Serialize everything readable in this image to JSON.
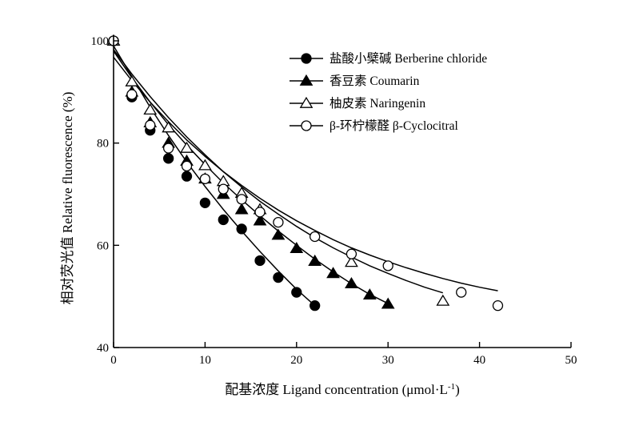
{
  "chart_data": {
    "type": "scatter",
    "xlabel": "配基浓度 Ligand concentration (μmol·L",
    "xlabel_sup": "-1",
    "xlabel_close": ")",
    "ylabel": "相对荧光值 Relative fluorescence (%)",
    "xlim": [
      0,
      50
    ],
    "ylim": [
      40,
      100
    ],
    "xticks": [
      0,
      10,
      20,
      30,
      40,
      50
    ],
    "yticks": [
      40,
      60,
      80,
      100
    ],
    "grid": false,
    "legend_position": "top-right",
    "series": [
      {
        "name": "盐酸小檗碱 Berberine chloride",
        "marker": "filled-circle",
        "x": [
          0,
          2,
          4,
          6,
          8,
          10,
          12,
          14,
          16,
          18,
          20,
          22
        ],
        "y": [
          100,
          89,
          82.5,
          77,
          73.5,
          68.3,
          65,
          63.2,
          57,
          53.7,
          50.8,
          48.2
        ],
        "fit": [
          [
            0,
            99
          ],
          [
            2,
            93
          ],
          [
            4,
            87
          ],
          [
            6,
            81.5
          ],
          [
            8,
            76.3
          ],
          [
            10,
            71.5
          ],
          [
            12,
            67
          ],
          [
            14,
            62.8
          ],
          [
            16,
            58.8
          ],
          [
            18,
            55
          ],
          [
            20,
            51.4
          ],
          [
            22,
            48.2
          ]
        ]
      },
      {
        "name": "香豆素 Coumarin",
        "marker": "filled-triangle",
        "x": [
          0,
          2,
          4,
          6,
          8,
          10,
          12,
          14,
          16,
          18,
          20,
          22,
          24,
          26,
          28,
          30
        ],
        "y": [
          100,
          90,
          84,
          80,
          76.5,
          73,
          70,
          67,
          64.8,
          62,
          59.4,
          56.9,
          54.5,
          52.5,
          50.3,
          48.5
        ],
        "fit": [
          [
            0,
            98
          ],
          [
            2,
            92.8
          ],
          [
            4,
            88
          ],
          [
            6,
            83.6
          ],
          [
            8,
            79.6
          ],
          [
            10,
            75.8
          ],
          [
            12,
            72.2
          ],
          [
            14,
            68.9
          ],
          [
            16,
            65.8
          ],
          [
            18,
            62.8
          ],
          [
            20,
            60
          ],
          [
            22,
            57.3
          ],
          [
            24,
            54.8
          ],
          [
            26,
            52.5
          ],
          [
            28,
            50.4
          ],
          [
            30,
            48.6
          ]
        ]
      },
      {
        "name": "柚皮素 Naringenin",
        "marker": "open-triangle",
        "x": [
          0,
          2,
          4,
          6,
          8,
          10,
          12,
          14,
          16,
          26,
          36
        ],
        "y": [
          100,
          92,
          86.5,
          83,
          79,
          75.6,
          72.5,
          70.2,
          67,
          56.7,
          49.1
        ],
        "fit": [
          [
            0,
            98.3
          ],
          [
            2,
            93.5
          ],
          [
            4,
            89.1
          ],
          [
            6,
            85
          ],
          [
            8,
            81.2
          ],
          [
            10,
            77.7
          ],
          [
            12,
            74.4
          ],
          [
            14,
            71.4
          ],
          [
            16,
            68.6
          ],
          [
            18,
            66.1
          ],
          [
            20,
            63.7
          ],
          [
            22,
            61.5
          ],
          [
            24,
            59.5
          ],
          [
            26,
            57.7
          ],
          [
            28,
            56
          ],
          [
            30,
            54.5
          ],
          [
            32,
            53.1
          ],
          [
            34,
            51.8
          ],
          [
            36,
            50.7
          ]
        ]
      },
      {
        "name": "β-环柠檬醛 β-Cyclocitral",
        "marker": "open-circle",
        "x": [
          0,
          2,
          4,
          6,
          8,
          10,
          12,
          14,
          16,
          18,
          22,
          26,
          30,
          38,
          42
        ],
        "y": [
          100,
          89.5,
          83.5,
          79,
          75.5,
          73,
          71,
          69,
          66.5,
          64.5,
          61.7,
          58.3,
          56,
          50.8,
          48.2
        ],
        "fit": [
          [
            0,
            96.8
          ],
          [
            2,
            92.2
          ],
          [
            4,
            88
          ],
          [
            6,
            84.2
          ],
          [
            8,
            80.6
          ],
          [
            10,
            77.4
          ],
          [
            12,
            74.4
          ],
          [
            14,
            71.7
          ],
          [
            16,
            69.2
          ],
          [
            18,
            66.9
          ],
          [
            20,
            64.8
          ],
          [
            22,
            62.9
          ],
          [
            24,
            61.1
          ],
          [
            26,
            59.5
          ],
          [
            28,
            58.1
          ],
          [
            30,
            56.8
          ],
          [
            32,
            55.6
          ],
          [
            34,
            54.5
          ],
          [
            36,
            53.5
          ],
          [
            38,
            52.6
          ],
          [
            40,
            51.8
          ],
          [
            42,
            51.1
          ]
        ]
      }
    ]
  }
}
